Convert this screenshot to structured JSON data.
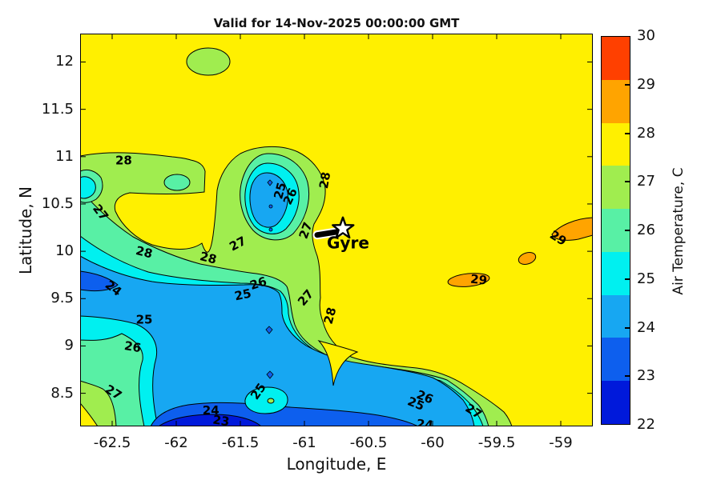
{
  "title": "Valid for 14-Nov-2025 00:00:00 GMT",
  "axes": {
    "x": {
      "label": "Longitude, E",
      "min": -62.75,
      "max": -58.75,
      "tick_values": [
        -62.5,
        -62,
        -61.5,
        -61,
        -60.5,
        -60,
        -59.5,
        -59
      ],
      "tick_labels": [
        "-62.5",
        "-62",
        "-61.5",
        "-61",
        "-60.5",
        "-60",
        "-59.5",
        "-59"
      ]
    },
    "y": {
      "label": "Latitude, N",
      "min": 8.15,
      "max": 12.3,
      "tick_values": [
        12,
        11.5,
        11,
        10.5,
        10,
        9.5,
        9,
        8.5
      ],
      "tick_labels": [
        "12",
        "11.5",
        "11",
        "10.5",
        "10",
        "9.5",
        "9",
        "8.5"
      ]
    }
  },
  "colorbar": {
    "label": "Air Temperature, C",
    "min": 22,
    "max": 30,
    "tick_values": [
      30,
      29,
      28,
      27,
      26,
      25,
      24,
      23,
      22
    ],
    "tick_labels": [
      "30",
      "29",
      "28",
      "27",
      "26",
      "25",
      "24",
      "23",
      "22"
    ],
    "band_colors_top_to_bottom": [
      "#FF4000",
      "#FFA400",
      "#FFF000",
      "#A0ED4F",
      "#58F0A5",
      "#00F0F0",
      "#17A7F2",
      "#0D5FEE",
      "#0019DB"
    ]
  },
  "gyre": {
    "label": "Gyre",
    "lon": -60.7,
    "lat": 10.24
  },
  "chart_data": {
    "type": "heatmap",
    "variant": "filled-contour-map",
    "title": "Valid for 14-Nov-2025 00:00:00 GMT",
    "xlabel": "Longitude, E",
    "ylabel": "Latitude, N",
    "xlim": [
      -62.75,
      -58.75
    ],
    "ylim": [
      8.15,
      12.3
    ],
    "grid": false,
    "colorbar_label": "Air Temperature, C",
    "colorbar_range": [
      22,
      30
    ],
    "fill_colors_low_to_high": [
      "#0019DB",
      "#0D5FEE",
      "#17A7F2",
      "#00F0F0",
      "#58F0A5",
      "#A0ED4F",
      "#FFF000",
      "#FFA400",
      "#FF4000"
    ],
    "contour_levels": [
      23,
      24,
      25,
      26,
      27,
      28,
      29
    ],
    "regions": [
      {
        "desc": "dominant warm yellow field over most of the map (upper right half)"
      },
      {
        "desc": "cold front: broad cool mass (24-25 C core) over the southwest quadrant reaching the bottom edge, coldest strip 22-23 C at bottom near -61.6 to -61.0"
      },
      {
        "desc": "closed cool pocket (24-25 C core) centered near lon -61.2, lat 10.6 ringed by 25/26/27/28 contours"
      },
      {
        "desc": "green band along lat ~10.6-11.0 from west edge to ~lon -61.3, small 26-27 C oval near lon -62.0 lat 10.73"
      },
      {
        "desc": "small 26-27 C oval near lon -61.75, lat 12.0"
      },
      {
        "desc": "warm spots above 29 C: oval near lon -59.7 lat 9.75, small spot near lon -59.3 lat 10.0, finger at east edge near lat 10.2"
      },
      {
        "desc": "small warm 25-26 C pocket ringed by 25 contour near lon -61.3, lat 8.45"
      }
    ],
    "contour_labels": [
      {
        "value": 28,
        "lon": -62.41,
        "lat": 10.96,
        "rot": 0
      },
      {
        "value": 27,
        "lon": -62.59,
        "lat": 10.41,
        "rot": 52
      },
      {
        "value": 28,
        "lon": -62.25,
        "lat": 9.99,
        "rot": 14
      },
      {
        "value": 28,
        "lon": -61.75,
        "lat": 9.93,
        "rot": 14
      },
      {
        "value": 27,
        "lon": -61.52,
        "lat": 10.08,
        "rot": -28
      },
      {
        "value": 25,
        "lon": -61.19,
        "lat": 10.64,
        "rot": -75
      },
      {
        "value": 26,
        "lon": -61.11,
        "lat": 10.58,
        "rot": -65
      },
      {
        "value": 28,
        "lon": -60.84,
        "lat": 10.75,
        "rot": -80
      },
      {
        "value": 27,
        "lon": -60.99,
        "lat": 10.22,
        "rot": -70
      },
      {
        "value": 24,
        "lon": -62.49,
        "lat": 9.61,
        "rot": 38
      },
      {
        "value": 26,
        "lon": -61.36,
        "lat": 9.66,
        "rot": -18
      },
      {
        "value": 25,
        "lon": -61.48,
        "lat": 9.54,
        "rot": -12
      },
      {
        "value": 27,
        "lon": -60.99,
        "lat": 9.51,
        "rot": -50
      },
      {
        "value": 28,
        "lon": -60.8,
        "lat": 9.32,
        "rot": -75
      },
      {
        "value": 25,
        "lon": -62.25,
        "lat": 9.28,
        "rot": 0
      },
      {
        "value": 26,
        "lon": -62.34,
        "lat": 8.99,
        "rot": 10
      },
      {
        "value": 27,
        "lon": -62.49,
        "lat": 8.51,
        "rot": 32
      },
      {
        "value": 25,
        "lon": -61.36,
        "lat": 8.52,
        "rot": -55
      },
      {
        "value": 24,
        "lon": -61.73,
        "lat": 8.32,
        "rot": 0
      },
      {
        "value": 23,
        "lon": -61.65,
        "lat": 8.21,
        "rot": 8
      },
      {
        "value": 26,
        "lon": -60.06,
        "lat": 8.46,
        "rot": 22
      },
      {
        "value": 25,
        "lon": -60.13,
        "lat": 8.39,
        "rot": 22
      },
      {
        "value": 27,
        "lon": -59.68,
        "lat": 8.31,
        "rot": 32
      },
      {
        "value": 24,
        "lon": -60.06,
        "lat": 8.17,
        "rot": 6
      },
      {
        "value": 29,
        "lon": -59.64,
        "lat": 9.7,
        "rot": 6
      },
      {
        "value": 29,
        "lon": -59.02,
        "lat": 10.14,
        "rot": 32
      }
    ],
    "annotations": [
      {
        "label": "Gyre",
        "lon": -60.7,
        "lat": 10.24,
        "marker": "star-with-black-track"
      }
    ]
  }
}
